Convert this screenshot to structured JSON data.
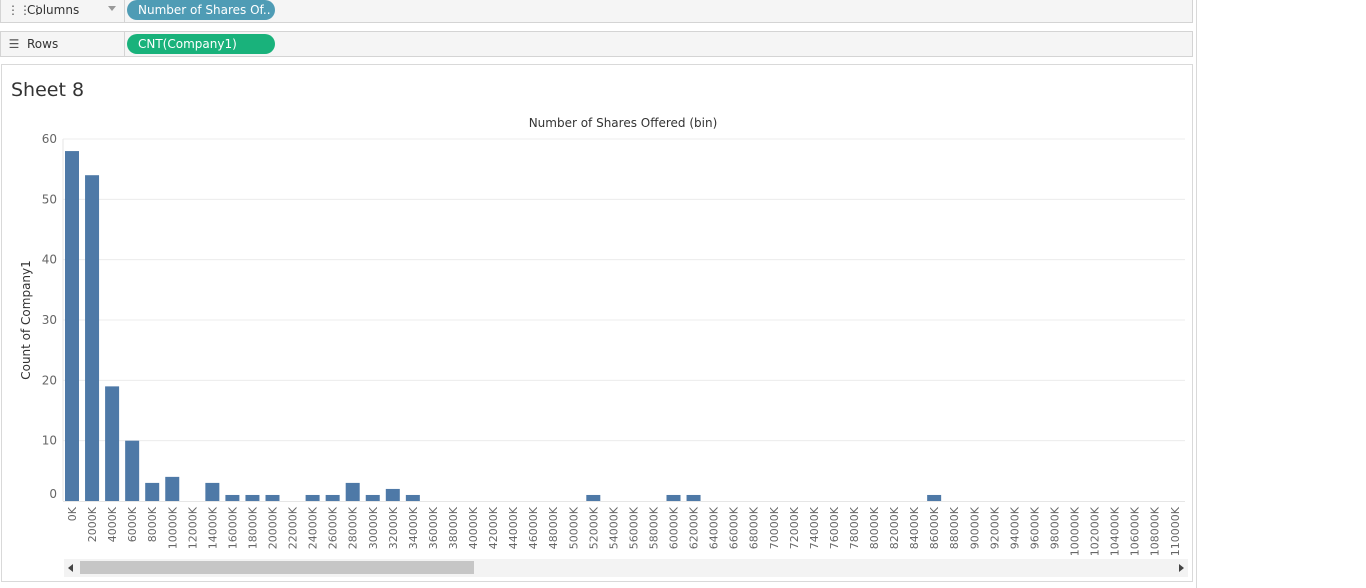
{
  "shelves": {
    "columns": {
      "label": "Columns",
      "icon": "columns-icon",
      "pill": "Number of Shares Of..",
      "pill_color": "#4f9cb5"
    },
    "rows": {
      "label": "Rows",
      "icon": "rows-icon",
      "pill": "CNT(Company1)",
      "pill_color": "#19b27b"
    }
  },
  "sheet": {
    "title": "Sheet 8"
  },
  "chart_data": {
    "type": "bar",
    "title": "Number of Shares Offered (bin)",
    "xlabel": "",
    "ylabel": "Count of Company1",
    "ylim": [
      0,
      60
    ],
    "yticks": [
      0,
      10,
      20,
      30,
      40,
      50,
      60
    ],
    "grid": true,
    "bar_color": "#4e79a7",
    "categories": [
      "0K",
      "2000K",
      "4000K",
      "6000K",
      "8000K",
      "10000K",
      "12000K",
      "14000K",
      "16000K",
      "18000K",
      "20000K",
      "22000K",
      "24000K",
      "26000K",
      "28000K",
      "30000K",
      "32000K",
      "34000K",
      "36000K",
      "38000K",
      "40000K",
      "42000K",
      "44000K",
      "46000K",
      "48000K",
      "50000K",
      "52000K",
      "54000K",
      "56000K",
      "58000K",
      "60000K",
      "62000K",
      "64000K",
      "66000K",
      "68000K",
      "70000K",
      "72000K",
      "74000K",
      "76000K",
      "78000K",
      "80000K",
      "82000K",
      "84000K",
      "86000K",
      "88000K",
      "90000K",
      "92000K",
      "94000K",
      "96000K",
      "98000K",
      "100000K",
      "102000K",
      "104000K",
      "106000K",
      "108000K",
      "110000K"
    ],
    "values": [
      58,
      54,
      19,
      10,
      3,
      4,
      0,
      3,
      1,
      1,
      1,
      0,
      1,
      1,
      3,
      1,
      2,
      1,
      0,
      0,
      0,
      0,
      0,
      0,
      0,
      0,
      1,
      0,
      0,
      0,
      1,
      1,
      0,
      0,
      0,
      0,
      0,
      0,
      0,
      0,
      0,
      0,
      0,
      1,
      0,
      0,
      0,
      0,
      0,
      0,
      0,
      0,
      0,
      0,
      0,
      0
    ]
  }
}
